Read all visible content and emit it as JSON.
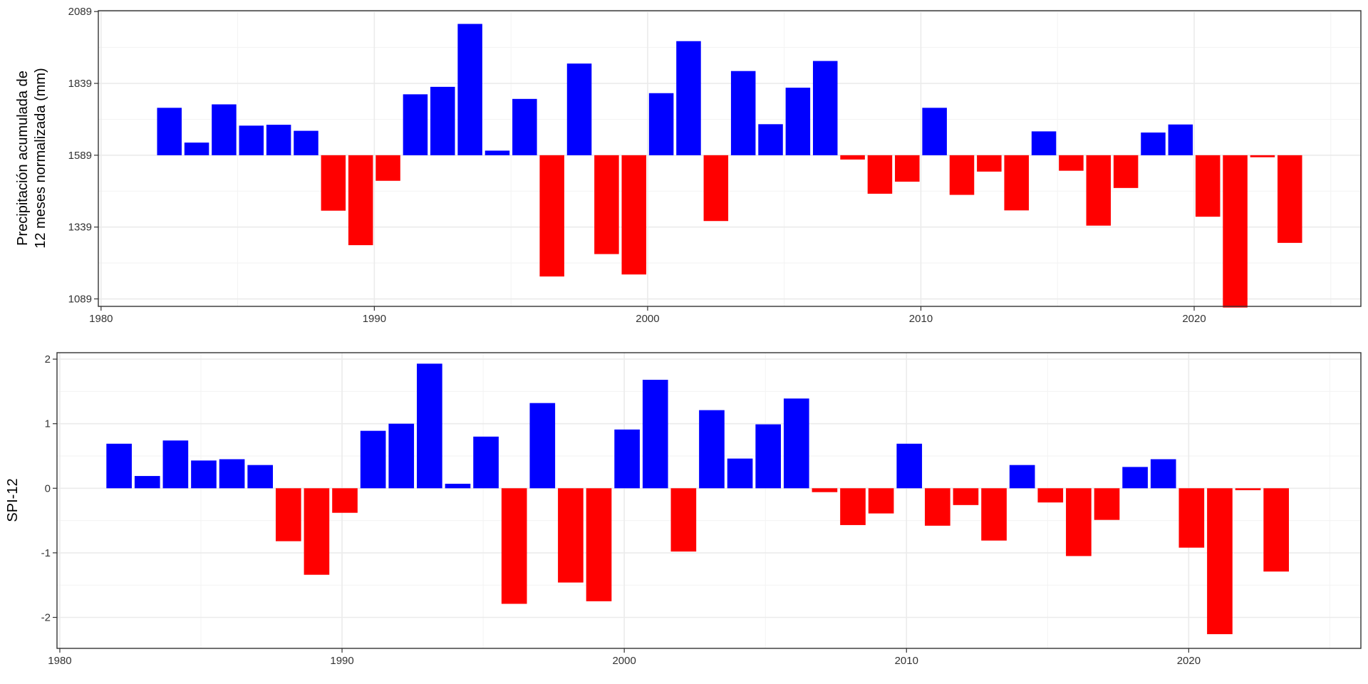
{
  "colors": {
    "positive": "#0000ff",
    "negative": "#ff0000"
  },
  "chart_data": [
    {
      "type": "bar",
      "ylabel_lines": [
        "Precipitación acumulada de",
        "12 meses normalizada (mm)"
      ],
      "baseline": 1589,
      "ylim": [
        1063,
        2092
      ],
      "xlim": [
        1979.9,
        2026.1
      ],
      "yticks": [
        1089,
        1339,
        1589,
        1839,
        2089
      ],
      "ytick_labels": [
        "1089",
        "1339",
        "1589",
        "1839",
        "2089"
      ],
      "xticks": [
        1980,
        1990,
        2000,
        2010,
        2020
      ],
      "xtick_labels": [
        "1980",
        "1990",
        "2000",
        "2010",
        "2020"
      ],
      "grid": true,
      "x": [
        1982.5,
        1983.5,
        1984.5,
        1985.5,
        1986.5,
        1987.5,
        1988.5,
        1989.5,
        1990.5,
        1991.5,
        1992.5,
        1993.5,
        1994.5,
        1995.5,
        1996.5,
        1997.5,
        1998.5,
        1999.5,
        2000.5,
        2001.5,
        2002.5,
        2003.5,
        2004.5,
        2005.5,
        2006.5,
        2007.5,
        2008.5,
        2009.5,
        2010.5,
        2011.5,
        2012.5,
        2013.5,
        2014.5,
        2015.5,
        2016.5,
        2017.5,
        2018.5,
        2019.5,
        2020.5,
        2021.5,
        2022.5,
        2023.5
      ],
      "values": [
        1754,
        1633,
        1766,
        1692,
        1695,
        1674,
        1396,
        1276,
        1500,
        1801,
        1827,
        2046,
        1605,
        1785,
        1167,
        1908,
        1245,
        1174,
        1805,
        1986,
        1360,
        1882,
        1697,
        1824,
        1917,
        1574,
        1455,
        1497,
        1754,
        1451,
        1532,
        1397,
        1672,
        1535,
        1344,
        1475,
        1668,
        1696,
        1375,
        1059,
        1582,
        1284
      ]
    },
    {
      "type": "bar",
      "ylabel": "SPI-12",
      "baseline": 0,
      "ylim": [
        -2.48,
        2.1
      ],
      "xlim": [
        1979.9,
        2026.1
      ],
      "yticks": [
        -2,
        -1,
        0,
        1,
        2
      ],
      "ytick_labels": [
        "-2",
        "-1",
        "0",
        "1",
        "2"
      ],
      "xticks": [
        1980,
        1990,
        2000,
        2010,
        2020
      ],
      "xtick_labels": [
        "1980",
        "1990",
        "2000",
        "2010",
        "2020"
      ],
      "grid": true,
      "x": [
        1982.1,
        1983.1,
        1984.1,
        1985.1,
        1986.1,
        1987.1,
        1988.1,
        1989.1,
        1990.1,
        1991.1,
        1992.1,
        1993.1,
        1994.1,
        1995.1,
        1996.1,
        1997.1,
        1998.1,
        1999.1,
        2000.1,
        2001.1,
        2002.1,
        2003.1,
        2004.1,
        2005.1,
        2006.1,
        2007.1,
        2008.1,
        2009.1,
        2010.1,
        2011.1,
        2012.1,
        2013.1,
        2014.1,
        2015.1,
        2016.1,
        2017.1,
        2018.1,
        2019.1,
        2020.1,
        2021.1,
        2022.1,
        2023.1
      ],
      "values": [
        0.69,
        0.19,
        0.74,
        0.43,
        0.45,
        0.36,
        -0.82,
        -1.34,
        -0.38,
        0.89,
        1.0,
        1.93,
        0.07,
        0.8,
        -1.79,
        1.32,
        -1.46,
        -1.75,
        0.91,
        1.68,
        -0.98,
        1.21,
        0.46,
        0.99,
        1.39,
        -0.06,
        -0.57,
        -0.39,
        0.69,
        -0.58,
        -0.26,
        -0.81,
        0.36,
        -0.22,
        -1.05,
        -0.49,
        0.33,
        0.45,
        -0.92,
        -2.26,
        -0.03,
        -1.29
      ]
    }
  ]
}
